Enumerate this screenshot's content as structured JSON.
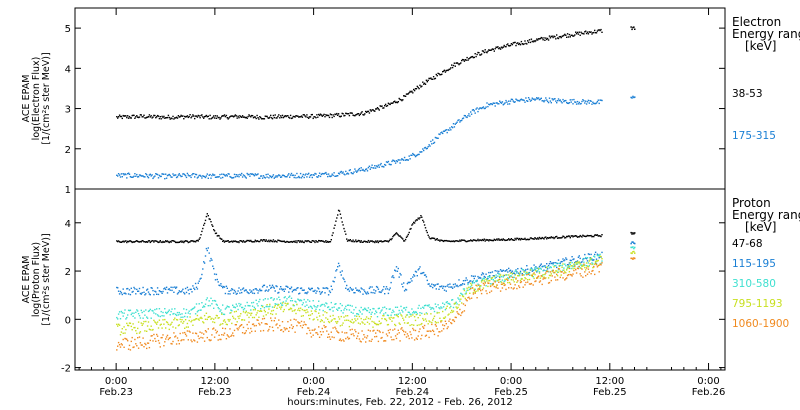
{
  "chart_data": [
    {
      "type": "scatter",
      "ylabel_lines": [
        "ACE EPAM",
        "log(Electron Flux)",
        "[1/(cm²s ster MeV)]"
      ],
      "legend": {
        "title_lines": [
          "Electron",
          "Energy ranges",
          "[keV]"
        ],
        "placement": "right"
      },
      "ylim": [
        1,
        5.5
      ],
      "yticks": [
        1,
        2,
        3,
        4,
        5
      ],
      "series": [
        {
          "name": "38-53",
          "color": "#000000",
          "points": [
            [
              0,
              2.8
            ],
            [
              6,
              2.82
            ],
            [
              12,
              2.8
            ],
            [
              18,
              2.82
            ],
            [
              24,
              2.8
            ],
            [
              30,
              2.82
            ],
            [
              36,
              2.8
            ],
            [
              42,
              2.82
            ],
            [
              48,
              2.82
            ],
            [
              54,
              2.85
            ],
            [
              60,
              2.9
            ],
            [
              66,
              3.1
            ],
            [
              70,
              3.3
            ],
            [
              74,
              3.6
            ],
            [
              78,
              3.85
            ],
            [
              82,
              4.1
            ],
            [
              86,
              4.3
            ],
            [
              90,
              4.45
            ],
            [
              96,
              4.6
            ],
            [
              102,
              4.72
            ],
            [
              108,
              4.82
            ],
            [
              114,
              4.9
            ],
            [
              118,
              4.95
            ],
            [
              125,
              5.02
            ]
          ]
        },
        {
          "name": "175-315",
          "color": "#1a7fd4",
          "points": [
            [
              0,
              1.35
            ],
            [
              6,
              1.35
            ],
            [
              12,
              1.33
            ],
            [
              18,
              1.35
            ],
            [
              24,
              1.33
            ],
            [
              30,
              1.35
            ],
            [
              36,
              1.34
            ],
            [
              42,
              1.35
            ],
            [
              48,
              1.36
            ],
            [
              54,
              1.4
            ],
            [
              60,
              1.5
            ],
            [
              66,
              1.65
            ],
            [
              70,
              1.75
            ],
            [
              74,
              1.95
            ],
            [
              78,
              2.3
            ],
            [
              82,
              2.6
            ],
            [
              86,
              2.9
            ],
            [
              90,
              3.1
            ],
            [
              96,
              3.2
            ],
            [
              102,
              3.25
            ],
            [
              108,
              3.2
            ],
            [
              114,
              3.18
            ],
            [
              118,
              3.17
            ],
            [
              125,
              3.3
            ]
          ]
        }
      ]
    },
    {
      "type": "scatter",
      "ylabel_lines": [
        "ACE EPAM",
        "log(Proton Flux)",
        "[1/(cm²s ster MeV)]"
      ],
      "legend": {
        "title_lines": [
          "Proton",
          "Energy ranges",
          "[keV]"
        ],
        "placement": "right"
      },
      "ylim": [
        -2.1,
        5.4
      ],
      "yticks": [
        -2,
        0,
        2,
        4
      ],
      "series": [
        {
          "name": "47-68",
          "color": "#000000",
          "points": [
            [
              0,
              3.25
            ],
            [
              6,
              3.25
            ],
            [
              12,
              3.25
            ],
            [
              18,
              3.25
            ],
            [
              20,
              3.3
            ],
            [
              22,
              4.4
            ],
            [
              24,
              3.6
            ],
            [
              26,
              3.25
            ],
            [
              30,
              3.25
            ],
            [
              36,
              3.3
            ],
            [
              42,
              3.25
            ],
            [
              48,
              3.25
            ],
            [
              52,
              3.25
            ],
            [
              54,
              4.6
            ],
            [
              56,
              3.3
            ],
            [
              60,
              3.25
            ],
            [
              66,
              3.25
            ],
            [
              68,
              3.6
            ],
            [
              70,
              3.25
            ],
            [
              72,
              4.0
            ],
            [
              74,
              4.3
            ],
            [
              76,
              3.4
            ],
            [
              80,
              3.25
            ],
            [
              86,
              3.3
            ],
            [
              92,
              3.32
            ],
            [
              98,
              3.35
            ],
            [
              104,
              3.4
            ],
            [
              110,
              3.45
            ],
            [
              118,
              3.5
            ],
            [
              125,
              3.6
            ]
          ]
        },
        {
          "name": "115-195",
          "color": "#1a7fd4",
          "points": [
            [
              0,
              1.2
            ],
            [
              6,
              1.2
            ],
            [
              12,
              1.22
            ],
            [
              18,
              1.2
            ],
            [
              20,
              1.5
            ],
            [
              22,
              3.0
            ],
            [
              24,
              1.8
            ],
            [
              26,
              1.25
            ],
            [
              30,
              1.2
            ],
            [
              36,
              1.3
            ],
            [
              42,
              1.25
            ],
            [
              48,
              1.2
            ],
            [
              52,
              1.2
            ],
            [
              54,
              2.3
            ],
            [
              56,
              1.3
            ],
            [
              60,
              1.2
            ],
            [
              66,
              1.25
            ],
            [
              68,
              2.2
            ],
            [
              70,
              1.3
            ],
            [
              72,
              1.8
            ],
            [
              74,
              2.1
            ],
            [
              76,
              1.4
            ],
            [
              80,
              1.35
            ],
            [
              86,
              1.7
            ],
            [
              92,
              1.9
            ],
            [
              98,
              2.05
            ],
            [
              104,
              2.2
            ],
            [
              110,
              2.45
            ],
            [
              118,
              2.7
            ],
            [
              125,
              3.2
            ]
          ]
        },
        {
          "name": "310-580",
          "color": "#3fe0d0",
          "points": [
            [
              0,
              0.2
            ],
            [
              6,
              0.25
            ],
            [
              12,
              0.3
            ],
            [
              18,
              0.3
            ],
            [
              22,
              0.8
            ],
            [
              26,
              0.4
            ],
            [
              30,
              0.5
            ],
            [
              36,
              0.7
            ],
            [
              42,
              0.8
            ],
            [
              48,
              0.6
            ],
            [
              54,
              0.5
            ],
            [
              60,
              0.3
            ],
            [
              66,
              0.35
            ],
            [
              72,
              0.4
            ],
            [
              78,
              0.5
            ],
            [
              82,
              0.7
            ],
            [
              86,
              1.4
            ],
            [
              92,
              1.7
            ],
            [
              98,
              1.9
            ],
            [
              104,
              2.05
            ],
            [
              110,
              2.25
            ],
            [
              118,
              2.55
            ],
            [
              125,
              3.0
            ]
          ]
        },
        {
          "name": "795-1193",
          "color": "#c8e020",
          "points": [
            [
              0,
              -0.4
            ],
            [
              6,
              -0.3
            ],
            [
              12,
              -0.2
            ],
            [
              18,
              -0.1
            ],
            [
              22,
              0.1
            ],
            [
              26,
              0.0
            ],
            [
              30,
              0.2
            ],
            [
              36,
              0.4
            ],
            [
              42,
              0.5
            ],
            [
              48,
              0.2
            ],
            [
              54,
              0.0
            ],
            [
              60,
              -0.1
            ],
            [
              66,
              0.0
            ],
            [
              72,
              0.0
            ],
            [
              78,
              0.1
            ],
            [
              82,
              0.5
            ],
            [
              86,
              1.3
            ],
            [
              92,
              1.6
            ],
            [
              98,
              1.8
            ],
            [
              104,
              1.95
            ],
            [
              110,
              2.15
            ],
            [
              118,
              2.45
            ],
            [
              125,
              2.8
            ]
          ]
        },
        {
          "name": "1060-1900",
          "color": "#f08a20",
          "points": [
            [
              0,
              -1.0
            ],
            [
              6,
              -0.95
            ],
            [
              12,
              -0.8
            ],
            [
              18,
              -0.7
            ],
            [
              22,
              -0.6
            ],
            [
              26,
              -0.6
            ],
            [
              30,
              -0.4
            ],
            [
              36,
              -0.2
            ],
            [
              42,
              -0.2
            ],
            [
              48,
              -0.45
            ],
            [
              54,
              -0.6
            ],
            [
              60,
              -0.7
            ],
            [
              66,
              -0.6
            ],
            [
              72,
              -0.6
            ],
            [
              78,
              -0.4
            ],
            [
              82,
              -0.1
            ],
            [
              86,
              1.1
            ],
            [
              92,
              1.4
            ],
            [
              98,
              1.6
            ],
            [
              104,
              1.75
            ],
            [
              110,
              1.95
            ],
            [
              118,
              2.2
            ],
            [
              125,
              2.55
            ]
          ]
        }
      ]
    }
  ],
  "x_axis": {
    "range_hours": [
      -10,
      148
    ],
    "ticks": [
      {
        "hour": 0,
        "time": "0:00",
        "date": "Feb.23"
      },
      {
        "hour": 24,
        "time": "12:00",
        "date": "Feb.23"
      },
      {
        "hour": 48,
        "time": "0:00",
        "date": "Feb.24"
      },
      {
        "hour": 72,
        "time": "12:00",
        "date": "Feb.24"
      },
      {
        "hour": 96,
        "time": "0:00",
        "date": "Feb.25"
      },
      {
        "hour": 120,
        "time": "12:00",
        "date": "Feb.25"
      },
      {
        "hour": 144,
        "time": "0:00",
        "date": "Feb.26"
      }
    ],
    "title": "hours:minutes, Feb. 22, 2012 - Feb. 26, 2012"
  }
}
